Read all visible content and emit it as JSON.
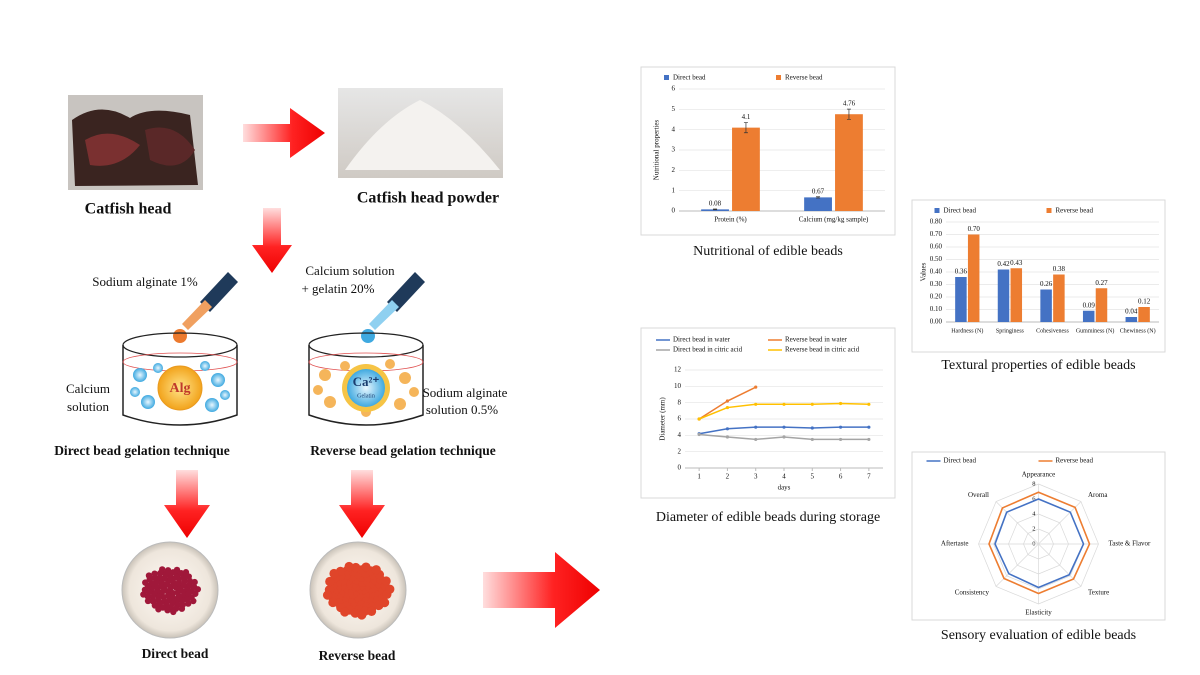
{
  "diagram": {
    "catfish_head": "Catfish head",
    "catfish_powder": "Catfish head powder",
    "sodium_alginate_1": "Sodium alginate 1%",
    "calcium_gelatin_1": "Calcium  solution",
    "calcium_gelatin_2": "+ gelatin 20%",
    "calcium_solution_1": "Calcium",
    "calcium_solution_2": "solution",
    "sodium_alginate_05_1": "Sodium alginate",
    "sodium_alginate_05_2": "solution 0.5%",
    "core_alg": "Alg",
    "core_ca": "Ca²⁺",
    "core_gelatin": "Gelatin",
    "direct_technique": "Direct bead gelation technique",
    "reverse_technique": "Reverse bead gelation technique",
    "direct_bead": "Direct bead",
    "reverse_bead": "Reverse bead"
  },
  "chart_data": [
    {
      "type": "bar",
      "title": "Nutritional of edible beads",
      "ylabel": "Nutritional properties",
      "categories": [
        "Protein (%)",
        "Calcium (mg/kg sample)"
      ],
      "series": [
        {
          "name": "Direct bead",
          "color": "#4472c4",
          "values": [
            0.08,
            0.67
          ],
          "errors": [
            0.02,
            0.03
          ]
        },
        {
          "name": "Reverse bead",
          "color": "#ed7d31",
          "values": [
            4.1,
            4.76
          ],
          "errors": [
            0.25,
            0.25
          ]
        }
      ],
      "ylim": [
        0,
        6
      ],
      "yticks": [
        0,
        1,
        2,
        3,
        4,
        5,
        6
      ],
      "grid": true,
      "legend": "top"
    },
    {
      "type": "bar",
      "title": "Textural properties of edible beads",
      "ylabel": "Values",
      "categories": [
        "Hardness (N)",
        "Springiness",
        "Cohesiveness",
        "Gumminess (N)",
        "Chewiness (N)"
      ],
      "series": [
        {
          "name": "Direct bead",
          "color": "#4472c4",
          "values": [
            0.36,
            0.42,
            0.26,
            0.09,
            0.04
          ],
          "value_labels": [
            "0.36",
            "0.42",
            "0.26",
            "0.09",
            "0.04"
          ]
        },
        {
          "name": "Reverse bead",
          "color": "#ed7d31",
          "values": [
            0.7,
            0.43,
            0.38,
            0.27,
            0.12
          ],
          "value_labels": [
            "0.70",
            "0.43",
            "0.38",
            "0.27",
            "0.12"
          ]
        }
      ],
      "ylim": [
        0,
        0.8
      ],
      "yticks": [
        {
          "value": 0,
          "label": "0.00"
        },
        {
          "value": 0.1,
          "label": "0.10"
        },
        {
          "value": 0.2,
          "label": "0.20"
        },
        {
          "value": 0.3,
          "label": "0.30"
        },
        {
          "value": 0.4,
          "label": "0.40"
        },
        {
          "value": 0.5,
          "label": "0.50"
        },
        {
          "value": 0.6,
          "label": "0.60"
        },
        {
          "value": 0.7,
          "label": "0.70"
        },
        {
          "value": 0.8,
          "label": "0.80"
        }
      ],
      "grid": true,
      "legend": "top"
    },
    {
      "type": "line",
      "title": "Diameter of edible beads during storage",
      "ylabel": "Diameter (mm)",
      "xlabel": "days",
      "x": [
        1,
        2,
        3,
        4,
        5,
        6,
        7
      ],
      "series": [
        {
          "name": "Direct bead in water",
          "color": "#4472c4",
          "values": [
            4.2,
            4.8,
            5.0,
            5.0,
            4.9,
            5.0,
            5.0
          ]
        },
        {
          "name": "Reverse bead in water",
          "color": "#ed7d31",
          "values": [
            6.0,
            8.2,
            9.9,
            null,
            null,
            null,
            null
          ]
        },
        {
          "name": "Direct bead in citric acid",
          "color": "#a5a5a5",
          "values": [
            4.1,
            3.8,
            3.5,
            3.8,
            3.5,
            3.5,
            3.5
          ]
        },
        {
          "name": "Reverse bead in citric acid",
          "color": "#ffc000",
          "values": [
            6.0,
            7.4,
            7.8,
            7.8,
            7.8,
            7.9,
            7.8
          ]
        }
      ],
      "xlim": [
        0.5,
        7.5
      ],
      "xticks": [
        1,
        2,
        3,
        4,
        5,
        6,
        7
      ],
      "ylim": [
        0,
        12
      ],
      "yticks": [
        0,
        2,
        4,
        6,
        8,
        10,
        12
      ],
      "grid": true,
      "legend": "top"
    },
    {
      "type": "radar",
      "title": "Sensory evaluation of edible beads",
      "categories": [
        "Appearance",
        "Aroma",
        "Taste & Flavor",
        "Texture",
        "Elasticity",
        "Consistency",
        "Aftertaste",
        "Overall"
      ],
      "series": [
        {
          "name": "Direct bead",
          "color": "#4472c4",
          "values": [
            6.0,
            6.0,
            6.0,
            5.8,
            5.8,
            5.6,
            5.8,
            6.0
          ]
        },
        {
          "name": "Reverse bead",
          "color": "#ed7d31",
          "values": [
            6.9,
            6.9,
            6.8,
            6.6,
            6.6,
            6.5,
            6.6,
            6.8
          ]
        }
      ],
      "rlim": [
        0,
        8
      ],
      "rticks": [
        0,
        2,
        4,
        6,
        8
      ],
      "grid": true,
      "legend": "top"
    }
  ]
}
